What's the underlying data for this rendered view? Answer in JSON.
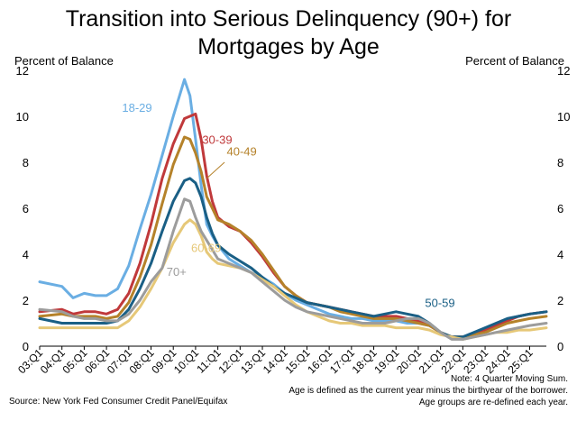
{
  "title_line1": "Transition into Serious Delinquency (90+) for",
  "title_line2": "Mortgages by Age",
  "left_axis_title": "Percent of Balance",
  "right_axis_title": "Percent of Balance",
  "notes": {
    "line1": "Note: 4 Quarter Moving Sum.",
    "line2": "Age is defined as the current year minus the birthyear of the borrower.",
    "line3": "Age groups are re-defined each year."
  },
  "source": "Source: New York Fed Consumer Credit Panel/Equifax",
  "chart_data": {
    "type": "line",
    "ylim": [
      0,
      12
    ],
    "y_ticks": [
      0,
      2,
      4,
      6,
      8,
      10,
      12
    ],
    "x_start": 2003.0,
    "x_end": 2025.75,
    "x_ticks": [
      "03:Q1",
      "04:Q1",
      "05:Q1",
      "06:Q1",
      "07:Q1",
      "08:Q1",
      "09:Q1",
      "10:Q1",
      "11:Q1",
      "12:Q1",
      "13:Q1",
      "14:Q1",
      "15:Q1",
      "16:Q1",
      "17:Q1",
      "18:Q1",
      "19:Q1",
      "20:Q1",
      "21:Q1",
      "22:Q1",
      "23:Q1",
      "24:Q1",
      "25:Q1"
    ],
    "grid": false,
    "series": [
      {
        "name": "18-29",
        "color": "#6aaee3",
        "points": [
          [
            2003.0,
            2.8
          ],
          [
            2004.0,
            2.6
          ],
          [
            2004.5,
            2.1
          ],
          [
            2005.0,
            2.3
          ],
          [
            2005.5,
            2.2
          ],
          [
            2006.0,
            2.2
          ],
          [
            2006.5,
            2.5
          ],
          [
            2007.0,
            3.5
          ],
          [
            2007.5,
            5.1
          ],
          [
            2008.0,
            6.6
          ],
          [
            2008.5,
            8.3
          ],
          [
            2009.0,
            10.0
          ],
          [
            2009.5,
            11.6
          ],
          [
            2009.75,
            10.9
          ],
          [
            2010.0,
            9.0
          ],
          [
            2010.25,
            7.0
          ],
          [
            2010.5,
            5.3
          ],
          [
            2010.75,
            4.8
          ],
          [
            2011.0,
            4.4
          ],
          [
            2011.5,
            3.8
          ],
          [
            2012.0,
            3.5
          ],
          [
            2012.5,
            3.2
          ],
          [
            2013.0,
            3.0
          ],
          [
            2013.5,
            2.7
          ],
          [
            2014.0,
            2.3
          ],
          [
            2014.5,
            2.0
          ],
          [
            2015.0,
            1.8
          ],
          [
            2015.5,
            1.6
          ],
          [
            2016.0,
            1.4
          ],
          [
            2016.5,
            1.3
          ],
          [
            2017.0,
            1.2
          ],
          [
            2017.5,
            1.2
          ],
          [
            2018.0,
            1.1
          ],
          [
            2018.5,
            1.1
          ],
          [
            2019.0,
            1.1
          ],
          [
            2019.5,
            1.0
          ],
          [
            2020.0,
            1.0
          ],
          [
            2020.5,
            0.9
          ],
          [
            2021.0,
            0.6
          ],
          [
            2021.5,
            0.4
          ],
          [
            2022.0,
            0.4
          ],
          [
            2022.5,
            0.6
          ],
          [
            2023.0,
            0.8
          ],
          [
            2023.5,
            1.0
          ],
          [
            2024.0,
            1.2
          ],
          [
            2024.5,
            1.3
          ],
          [
            2025.0,
            1.4
          ],
          [
            2025.75,
            1.5
          ]
        ]
      },
      {
        "name": "30-39",
        "color": "#c0393b",
        "points": [
          [
            2003.0,
            1.5
          ],
          [
            2004.0,
            1.6
          ],
          [
            2004.5,
            1.4
          ],
          [
            2005.0,
            1.5
          ],
          [
            2005.5,
            1.5
          ],
          [
            2006.0,
            1.4
          ],
          [
            2006.5,
            1.6
          ],
          [
            2007.0,
            2.3
          ],
          [
            2007.5,
            3.6
          ],
          [
            2008.0,
            5.3
          ],
          [
            2008.5,
            7.3
          ],
          [
            2009.0,
            8.8
          ],
          [
            2009.5,
            9.9
          ],
          [
            2010.0,
            10.1
          ],
          [
            2010.25,
            9.0
          ],
          [
            2010.5,
            7.4
          ],
          [
            2010.75,
            6.3
          ],
          [
            2011.0,
            5.6
          ],
          [
            2011.5,
            5.2
          ],
          [
            2012.0,
            5.0
          ],
          [
            2012.5,
            4.5
          ],
          [
            2013.0,
            3.9
          ],
          [
            2013.5,
            3.2
          ],
          [
            2014.0,
            2.6
          ],
          [
            2014.5,
            2.2
          ],
          [
            2015.0,
            1.9
          ],
          [
            2015.5,
            1.8
          ],
          [
            2016.0,
            1.7
          ],
          [
            2016.5,
            1.6
          ],
          [
            2017.0,
            1.5
          ],
          [
            2017.5,
            1.4
          ],
          [
            2018.0,
            1.3
          ],
          [
            2018.5,
            1.3
          ],
          [
            2019.0,
            1.3
          ],
          [
            2019.5,
            1.2
          ],
          [
            2020.0,
            1.1
          ],
          [
            2020.5,
            0.9
          ],
          [
            2021.0,
            0.6
          ],
          [
            2021.5,
            0.4
          ],
          [
            2022.0,
            0.4
          ],
          [
            2022.5,
            0.5
          ],
          [
            2023.0,
            0.7
          ],
          [
            2023.5,
            0.9
          ],
          [
            2024.0,
            1.1
          ],
          [
            2024.5,
            1.3
          ],
          [
            2025.0,
            1.4
          ],
          [
            2025.75,
            1.5
          ]
        ]
      },
      {
        "name": "40-49",
        "color": "#b5822a",
        "points": [
          [
            2003.0,
            1.3
          ],
          [
            2004.0,
            1.4
          ],
          [
            2004.5,
            1.3
          ],
          [
            2005.0,
            1.3
          ],
          [
            2005.5,
            1.3
          ],
          [
            2006.0,
            1.2
          ],
          [
            2006.5,
            1.3
          ],
          [
            2007.0,
            1.9
          ],
          [
            2007.5,
            3.0
          ],
          [
            2008.0,
            4.4
          ],
          [
            2008.5,
            6.2
          ],
          [
            2009.0,
            7.9
          ],
          [
            2009.5,
            9.1
          ],
          [
            2009.75,
            9.0
          ],
          [
            2010.0,
            8.4
          ],
          [
            2010.25,
            7.6
          ],
          [
            2010.5,
            6.5
          ],
          [
            2010.75,
            6.0
          ],
          [
            2011.0,
            5.5
          ],
          [
            2011.5,
            5.3
          ],
          [
            2012.0,
            5.0
          ],
          [
            2012.5,
            4.6
          ],
          [
            2013.0,
            4.0
          ],
          [
            2013.5,
            3.3
          ],
          [
            2014.0,
            2.6
          ],
          [
            2014.5,
            2.2
          ],
          [
            2015.0,
            1.9
          ],
          [
            2015.5,
            1.8
          ],
          [
            2016.0,
            1.7
          ],
          [
            2016.5,
            1.5
          ],
          [
            2017.0,
            1.4
          ],
          [
            2017.5,
            1.3
          ],
          [
            2018.0,
            1.2
          ],
          [
            2018.5,
            1.2
          ],
          [
            2019.0,
            1.2
          ],
          [
            2019.5,
            1.1
          ],
          [
            2020.0,
            1.0
          ],
          [
            2020.5,
            0.9
          ],
          [
            2021.0,
            0.6
          ],
          [
            2021.5,
            0.4
          ],
          [
            2022.0,
            0.4
          ],
          [
            2022.5,
            0.5
          ],
          [
            2023.0,
            0.6
          ],
          [
            2023.5,
            0.8
          ],
          [
            2024.0,
            1.0
          ],
          [
            2024.5,
            1.1
          ],
          [
            2025.0,
            1.2
          ],
          [
            2025.75,
            1.3
          ]
        ]
      },
      {
        "name": "50-59",
        "color": "#1a5f85",
        "points": [
          [
            2003.0,
            1.2
          ],
          [
            2004.0,
            1.0
          ],
          [
            2004.5,
            1.0
          ],
          [
            2005.0,
            1.0
          ],
          [
            2005.5,
            1.0
          ],
          [
            2006.0,
            1.0
          ],
          [
            2006.5,
            1.1
          ],
          [
            2007.0,
            1.6
          ],
          [
            2007.5,
            2.5
          ],
          [
            2008.0,
            3.6
          ],
          [
            2008.5,
            5.0
          ],
          [
            2009.0,
            6.3
          ],
          [
            2009.5,
            7.2
          ],
          [
            2009.75,
            7.3
          ],
          [
            2010.0,
            7.1
          ],
          [
            2010.25,
            6.5
          ],
          [
            2010.5,
            5.6
          ],
          [
            2010.75,
            4.9
          ],
          [
            2011.0,
            4.4
          ],
          [
            2011.5,
            4.0
          ],
          [
            2012.0,
            3.7
          ],
          [
            2012.5,
            3.4
          ],
          [
            2013.0,
            3.0
          ],
          [
            2013.5,
            2.6
          ],
          [
            2014.0,
            2.3
          ],
          [
            2014.5,
            2.1
          ],
          [
            2015.0,
            1.9
          ],
          [
            2015.5,
            1.8
          ],
          [
            2016.0,
            1.7
          ],
          [
            2016.5,
            1.6
          ],
          [
            2017.0,
            1.5
          ],
          [
            2017.5,
            1.4
          ],
          [
            2018.0,
            1.3
          ],
          [
            2018.5,
            1.4
          ],
          [
            2019.0,
            1.5
          ],
          [
            2019.5,
            1.4
          ],
          [
            2020.0,
            1.3
          ],
          [
            2020.5,
            1.0
          ],
          [
            2021.0,
            0.6
          ],
          [
            2021.5,
            0.4
          ],
          [
            2022.0,
            0.4
          ],
          [
            2022.5,
            0.6
          ],
          [
            2023.0,
            0.8
          ],
          [
            2023.5,
            1.0
          ],
          [
            2024.0,
            1.2
          ],
          [
            2024.5,
            1.3
          ],
          [
            2025.0,
            1.4
          ],
          [
            2025.75,
            1.5
          ]
        ]
      },
      {
        "name": "60-69",
        "color": "#e6c878",
        "points": [
          [
            2003.0,
            0.8
          ],
          [
            2004.0,
            0.8
          ],
          [
            2004.5,
            0.8
          ],
          [
            2005.0,
            0.8
          ],
          [
            2005.5,
            0.8
          ],
          [
            2006.0,
            0.8
          ],
          [
            2006.5,
            0.8
          ],
          [
            2007.0,
            1.1
          ],
          [
            2007.5,
            1.7
          ],
          [
            2008.0,
            2.5
          ],
          [
            2008.5,
            3.4
          ],
          [
            2009.0,
            4.5
          ],
          [
            2009.5,
            5.3
          ],
          [
            2009.75,
            5.5
          ],
          [
            2010.0,
            5.3
          ],
          [
            2010.25,
            4.8
          ],
          [
            2010.5,
            4.1
          ],
          [
            2010.75,
            3.8
          ],
          [
            2011.0,
            3.6
          ],
          [
            2011.5,
            3.5
          ],
          [
            2012.0,
            3.4
          ],
          [
            2012.5,
            3.2
          ],
          [
            2013.0,
            2.9
          ],
          [
            2013.5,
            2.6
          ],
          [
            2014.0,
            2.2
          ],
          [
            2014.5,
            1.8
          ],
          [
            2015.0,
            1.5
          ],
          [
            2015.5,
            1.3
          ],
          [
            2016.0,
            1.1
          ],
          [
            2016.5,
            1.0
          ],
          [
            2017.0,
            1.0
          ],
          [
            2017.5,
            0.9
          ],
          [
            2018.0,
            0.9
          ],
          [
            2018.5,
            0.9
          ],
          [
            2019.0,
            0.8
          ],
          [
            2019.5,
            0.8
          ],
          [
            2020.0,
            0.8
          ],
          [
            2020.5,
            0.7
          ],
          [
            2021.0,
            0.5
          ],
          [
            2021.5,
            0.4
          ],
          [
            2022.0,
            0.3
          ],
          [
            2022.5,
            0.4
          ],
          [
            2023.0,
            0.5
          ],
          [
            2023.5,
            0.6
          ],
          [
            2024.0,
            0.6
          ],
          [
            2024.5,
            0.7
          ],
          [
            2025.0,
            0.7
          ],
          [
            2025.75,
            0.8
          ]
        ]
      },
      {
        "name": "70+",
        "color": "#9c9c9c",
        "points": [
          [
            2003.0,
            1.6
          ],
          [
            2004.0,
            1.5
          ],
          [
            2004.5,
            1.3
          ],
          [
            2005.0,
            1.2
          ],
          [
            2005.5,
            1.2
          ],
          [
            2006.0,
            1.1
          ],
          [
            2006.5,
            1.1
          ],
          [
            2007.0,
            1.4
          ],
          [
            2007.5,
            2.0
          ],
          [
            2008.0,
            2.8
          ],
          [
            2008.5,
            3.4
          ],
          [
            2009.0,
            5.0
          ],
          [
            2009.5,
            6.4
          ],
          [
            2009.75,
            6.3
          ],
          [
            2010.0,
            5.6
          ],
          [
            2010.25,
            5.0
          ],
          [
            2010.5,
            4.6
          ],
          [
            2010.75,
            4.2
          ],
          [
            2011.0,
            3.8
          ],
          [
            2011.5,
            3.6
          ],
          [
            2012.0,
            3.4
          ],
          [
            2012.5,
            3.2
          ],
          [
            2013.0,
            2.8
          ],
          [
            2013.5,
            2.4
          ],
          [
            2014.0,
            2.0
          ],
          [
            2014.5,
            1.7
          ],
          [
            2015.0,
            1.5
          ],
          [
            2015.5,
            1.4
          ],
          [
            2016.0,
            1.3
          ],
          [
            2016.5,
            1.2
          ],
          [
            2017.0,
            1.1
          ],
          [
            2017.5,
            1.0
          ],
          [
            2018.0,
            1.0
          ],
          [
            2018.5,
            1.0
          ],
          [
            2019.0,
            1.1
          ],
          [
            2019.5,
            1.2
          ],
          [
            2020.0,
            1.2
          ],
          [
            2020.5,
            1.0
          ],
          [
            2021.0,
            0.6
          ],
          [
            2021.5,
            0.3
          ],
          [
            2022.0,
            0.3
          ],
          [
            2022.5,
            0.4
          ],
          [
            2023.0,
            0.5
          ],
          [
            2023.5,
            0.6
          ],
          [
            2024.0,
            0.7
          ],
          [
            2024.5,
            0.8
          ],
          [
            2025.0,
            0.9
          ],
          [
            2025.75,
            1.0
          ]
        ]
      }
    ]
  }
}
